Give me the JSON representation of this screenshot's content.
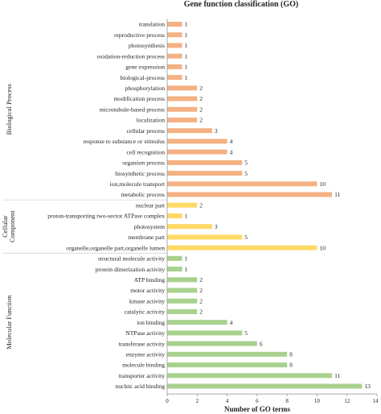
{
  "chart_data": {
    "type": "bar",
    "orientation": "horizontal",
    "title": "Gene function classification (GO)",
    "xlabel": "Number of GO terms",
    "xlim": [
      0,
      14
    ],
    "xticks": [
      0,
      2,
      4,
      6,
      8,
      10,
      12,
      14
    ],
    "grid": false,
    "legend": "none",
    "colors": {
      "Biological Process": "#f4b183",
      "Cellular Component": "#ffd966",
      "Molecular Function": "#a9d18e"
    },
    "groups": [
      {
        "name": "Biological Process",
        "categories": [
          "translation",
          "reproductive process",
          "photosynthesis",
          "oxidation-reduction process",
          "gene expression",
          "biological-process",
          "phosphorylation",
          "modification process",
          "microtubule-based process",
          "localization",
          "cellular process",
          "response to substance or stimulus",
          "cell recognition",
          "organism process",
          "biosynthetic process",
          "ion,molecule transport",
          "metabolic process"
        ],
        "values": [
          1,
          1,
          1,
          1,
          1,
          1,
          2,
          2,
          2,
          2,
          3,
          4,
          4,
          5,
          5,
          10,
          11
        ]
      },
      {
        "name": "Cellular Component",
        "categories": [
          "nuclear part",
          "proton-transporting two-sector ATPase complex",
          "photosystem",
          "membrane part",
          "organelle,organelle part,organelle lumen"
        ],
        "values": [
          2,
          1,
          3,
          5,
          10
        ]
      },
      {
        "name": "Molecular Function",
        "categories": [
          "structural molecule activity",
          "protein dimerization activity",
          "ATP binding",
          "motor activity",
          "kinase activity",
          "catalytic activity",
          "ion binding",
          "NTPase activity",
          "transferase activity",
          "enzyme activity",
          "molecule binding",
          "transporter activity",
          "nucleic acid binding"
        ],
        "values": [
          1,
          1,
          2,
          2,
          2,
          2,
          4,
          5,
          6,
          8,
          8,
          11,
          13
        ]
      }
    ]
  }
}
